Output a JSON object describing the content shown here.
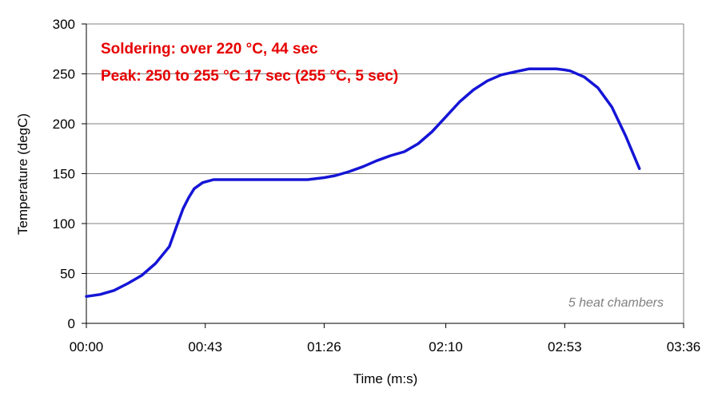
{
  "chart_data": {
    "type": "line",
    "title": "",
    "xlabel": "Time (m:s)",
    "ylabel": "Temperature (degC)",
    "xlim": [
      0,
      216
    ],
    "ylim": [
      0,
      300
    ],
    "x_ticks": [
      {
        "value": 0,
        "label": "00:00"
      },
      {
        "value": 43,
        "label": "00:43"
      },
      {
        "value": 86,
        "label": "01:26"
      },
      {
        "value": 130,
        "label": "02:10"
      },
      {
        "value": 173,
        "label": "02:53"
      },
      {
        "value": 216,
        "label": "03:36"
      }
    ],
    "y_ticks": [
      0,
      50,
      100,
      150,
      200,
      250,
      300
    ],
    "grid": "horizontal",
    "legend": "none",
    "annotations": [
      "Soldering: over 220 °C, 44 sec",
      "Peak: 250 to 255 °C 17 sec (255 °C, 5 sec)"
    ],
    "note": "5 heat chambers",
    "colors": {
      "series": "#1515d6",
      "annotation": "#e60000",
      "note": "#808080",
      "grid": "#808080"
    },
    "series": [
      {
        "x": [
          0,
          5,
          10,
          15,
          20,
          25,
          30,
          33,
          35,
          37,
          39,
          42,
          46,
          50,
          55,
          60,
          70,
          80,
          86,
          90,
          95,
          100,
          105,
          110,
          115,
          120,
          125,
          130,
          135,
          140,
          145,
          150,
          155,
          160,
          165,
          170,
          173,
          175,
          180,
          185,
          190,
          195,
          200
        ],
        "y": [
          27,
          29,
          33,
          40,
          48,
          60,
          77,
          100,
          115,
          126,
          135,
          141,
          144,
          144,
          144,
          144,
          144,
          144,
          146,
          148,
          152,
          157,
          163,
          168,
          172,
          180,
          192,
          207,
          222,
          234,
          243,
          249,
          252,
          255,
          255,
          255,
          254,
          253,
          247,
          236,
          217,
          188,
          155
        ]
      }
    ]
  }
}
